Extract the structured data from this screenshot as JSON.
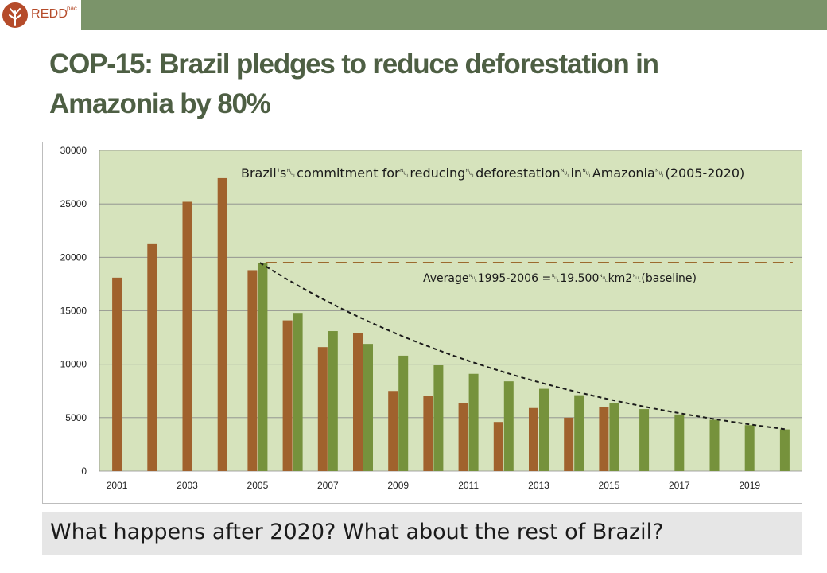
{
  "header": {
    "logo_text": "REDD",
    "logo_sup": "pac"
  },
  "slide": {
    "title_line1": "COP-15: Brazil pledges to reduce deforestation in",
    "title_line2": "Amazonia by 80%",
    "footer": "What happens after 2020?  What about the rest of Brazil?"
  },
  "colors": {
    "topbar": "#7b946a",
    "title": "#4e5f44",
    "plot_bg": "#d6e3bc",
    "observed_bar": "#a0622d",
    "target_bar": "#76923c",
    "baseline_line": "#9c6a2e",
    "trend_line": "#1a1a1a"
  },
  "chart_data": {
    "type": "bar",
    "title": "",
    "xlabel": "",
    "ylabel": "",
    "ylim": [
      0,
      30000
    ],
    "yticks": [
      0,
      5000,
      10000,
      15000,
      20000,
      25000,
      30000
    ],
    "x": [
      2001,
      2002,
      2003,
      2004,
      2005,
      2006,
      2007,
      2008,
      2009,
      2010,
      2011,
      2012,
      2013,
      2014,
      2015,
      2016,
      2017,
      2018,
      2019,
      2020
    ],
    "xtick_labels": [
      "2001",
      "2003",
      "2005",
      "2007",
      "2009",
      "2011",
      "2013",
      "2015",
      "2017",
      "2019"
    ],
    "grid": "horizontal",
    "series": [
      {
        "values": [
          18100,
          21300,
          25200,
          27400,
          18800,
          14100,
          11600,
          12900,
          7500,
          7000,
          6400,
          4600,
          5900,
          5000,
          6000,
          null,
          null,
          null,
          null,
          null
        ]
      },
      {
        "values": [
          null,
          null,
          null,
          null,
          19500,
          14800,
          13100,
          11900,
          10800,
          9900,
          9100,
          8400,
          7700,
          7100,
          6400,
          5800,
          5300,
          4800,
          4300,
          3900
        ]
      }
    ],
    "annotations": [
      "Brazil's␀commitment for␀reducing␀deforestation␀in␀Amazonia␀(2005-2020)",
      "Average␀1995-2006 =␀19.500␀km2␀(baseline)"
    ],
    "baseline": {
      "value": 19500,
      "from": 2005,
      "to": 2020
    },
    "trend": {
      "from": 2005,
      "to": 2020,
      "start": 19500,
      "end": 3900
    }
  }
}
